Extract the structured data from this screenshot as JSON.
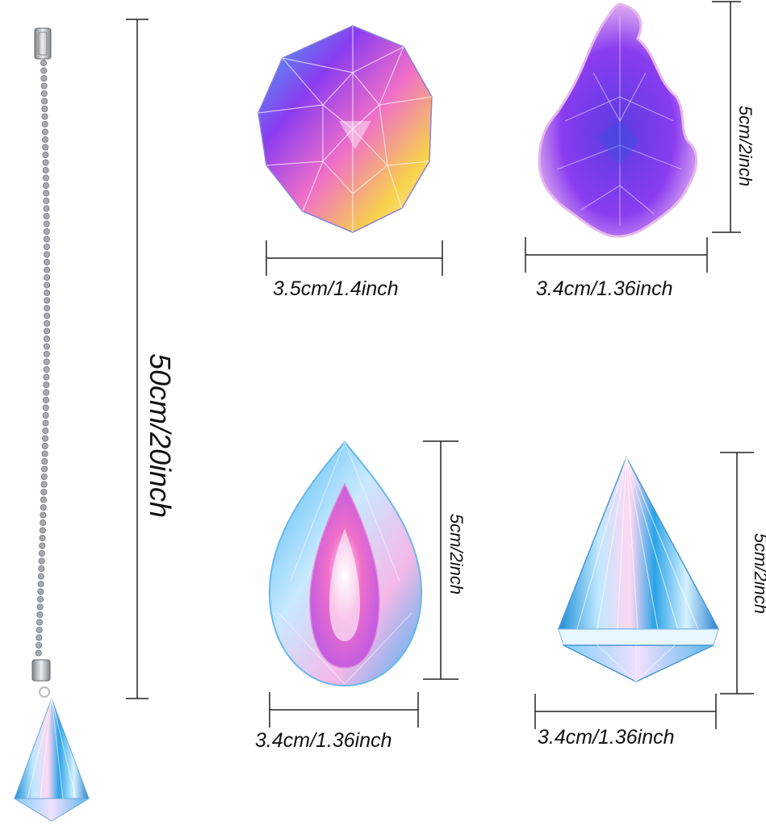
{
  "colors": {
    "background": "#ffffff",
    "measure_line": "#222222",
    "chain": "#a8acb2",
    "crystal_purple": "#8a3cf0",
    "crystal_blue": "#3fb4f2",
    "crystal_pink": "#f06fc8",
    "crystal_yellow": "#f7d24a"
  },
  "chain": {
    "icon": "ball-chain-icon",
    "length_label": "50cm/20inch"
  },
  "crystals": [
    {
      "id": "sphere",
      "icon": "faceted-ball-crystal-icon",
      "width_label": "3.5cm/1.4inch"
    },
    {
      "id": "maple-leaf",
      "icon": "maple-leaf-crystal-icon",
      "width_label": "3.4cm/1.36inch",
      "height_label": "5cm/2inch"
    },
    {
      "id": "teardrop",
      "icon": "teardrop-crystal-icon",
      "width_label": "3.4cm/1.36inch",
      "height_label": "5cm/2inch"
    },
    {
      "id": "cone",
      "icon": "cone-crystal-icon",
      "width_label": "3.4cm/1.36inch",
      "height_label": "5cm/2inch"
    }
  ]
}
